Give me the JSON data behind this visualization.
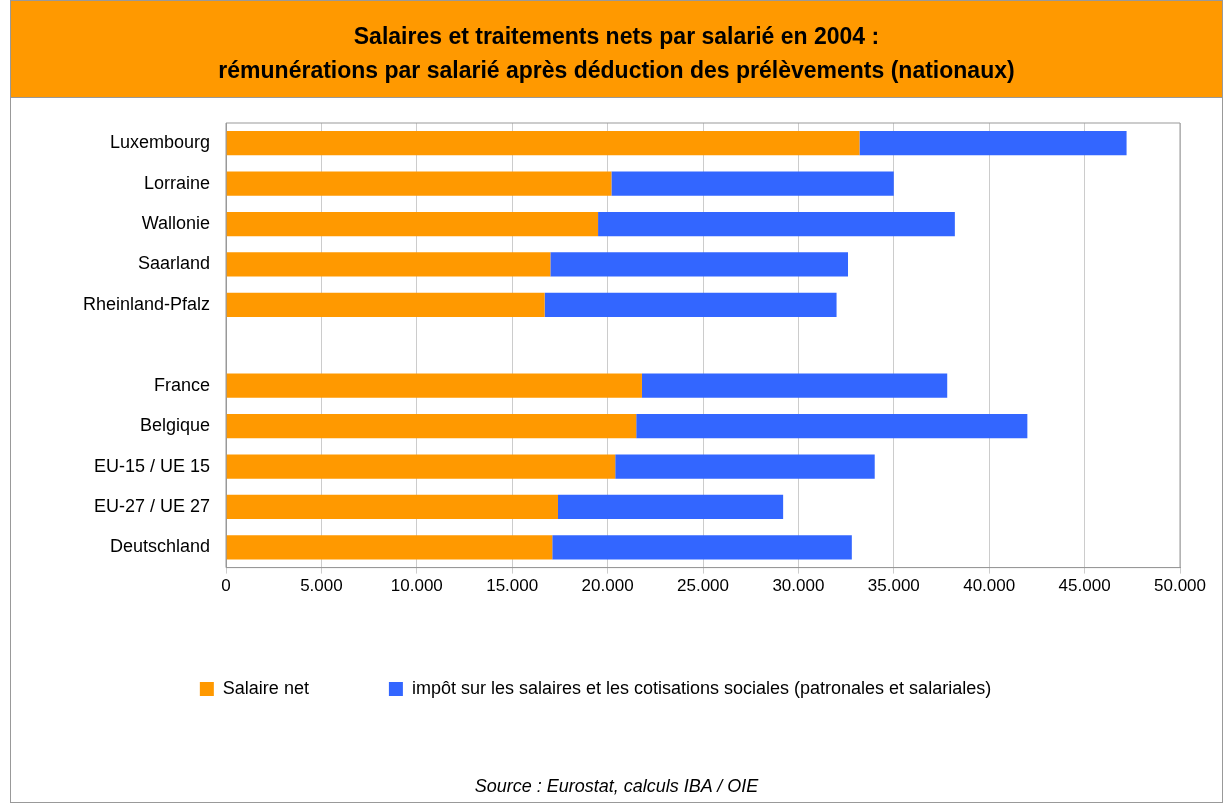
{
  "chart_data": {
    "type": "bar",
    "orientation": "horizontal",
    "stacked": true,
    "title": "Salaires et traitements nets par salarié en 2004 :\nrémunérations par salarié après déduction des prélèvements (nationaux)",
    "categories": [
      "Luxembourg",
      "Lorraine",
      "Wallonie",
      "Saarland",
      "Rheinland-Pfalz",
      null,
      "France",
      "Belgique",
      "EU-15 / UE 15",
      "EU-27 / UE 27",
      "Deutschland"
    ],
    "series": [
      {
        "name": "Salaire net",
        "color": "#ff9900",
        "values": [
          33200,
          20200,
          19500,
          17000,
          16700,
          null,
          21800,
          21500,
          20400,
          17400,
          17100
        ]
      },
      {
        "name": "impôt sur les salaires et les cotisations sociales (patronales et salariales)",
        "color": "#3366ff",
        "values": [
          14000,
          14800,
          18700,
          15600,
          15300,
          null,
          16000,
          20500,
          13600,
          11800,
          15700
        ]
      }
    ],
    "xlim": [
      0,
      50000
    ],
    "xticks": [
      0,
      {
        "value": 5000,
        "label": "5.000"
      },
      {
        "value": 10000,
        "label": "10.000"
      },
      {
        "value": 15000,
        "label": "15.000"
      },
      {
        "value": 20000,
        "label": "20.000"
      },
      {
        "value": 25000,
        "label": "25.000"
      },
      {
        "value": 30000,
        "label": "30.000"
      },
      {
        "value": 35000,
        "label": "35.000"
      },
      {
        "value": 40000,
        "label": "40.000"
      },
      {
        "value": 45000,
        "label": "45.000"
      },
      {
        "value": 50000,
        "label": "50.000"
      }
    ],
    "grid": "x",
    "legend": "bottom",
    "annotations": [
      "Source : Eurostat, calculs IBA / OIE"
    ]
  }
}
